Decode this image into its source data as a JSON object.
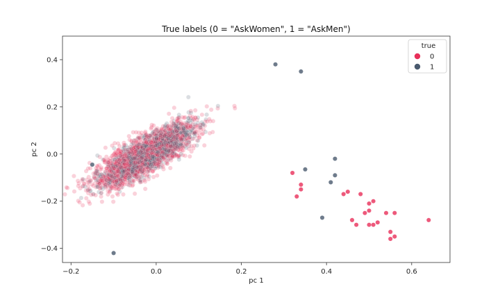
{
  "chart_data": {
    "type": "scatter",
    "title": "True labels (0 = \"AskWomen\", 1 = \"AskMen\")",
    "xlabel": "pc 1",
    "ylabel": "pc 2",
    "xlim": [
      -0.22,
      0.69
    ],
    "ylim": [
      -0.46,
      0.5
    ],
    "xticks": [
      -0.2,
      0.0,
      0.2,
      0.4,
      0.6
    ],
    "xtick_labels": [
      "−0.2",
      "0.0",
      "0.2",
      "0.4",
      "0.6"
    ],
    "yticks": [
      -0.4,
      -0.2,
      0.0,
      0.2,
      0.4
    ],
    "ytick_labels": [
      "−0.4",
      "−0.2",
      "0.0",
      "0.2",
      "0.4"
    ],
    "grid": false,
    "legend": {
      "title": "true",
      "placement": "top-right",
      "entries": [
        {
          "label": "0",
          "color": "#e8305a"
        },
        {
          "label": "1",
          "color": "#4a5a6e"
        }
      ]
    },
    "series": [
      {
        "label": "0",
        "color": "#e8305a",
        "cluster": {
          "center": [
            -0.03,
            -0.01
          ],
          "spread": [
            0.06,
            0.07
          ],
          "count": 1600,
          "corr": 0.8
        },
        "points": [
          [
            0.64,
            -0.28
          ],
          [
            0.56,
            -0.35
          ],
          [
            0.55,
            -0.36
          ],
          [
            0.56,
            -0.25
          ],
          [
            0.54,
            -0.25
          ],
          [
            0.52,
            -0.29
          ],
          [
            0.51,
            -0.3
          ],
          [
            0.5,
            -0.3
          ],
          [
            0.51,
            -0.2
          ],
          [
            0.5,
            -0.21
          ],
          [
            0.5,
            -0.24
          ],
          [
            0.49,
            -0.25
          ],
          [
            0.48,
            -0.17
          ],
          [
            0.44,
            -0.17
          ],
          [
            0.45,
            -0.16
          ],
          [
            0.34,
            -0.13
          ],
          [
            0.33,
            -0.18
          ],
          [
            0.34,
            -0.15
          ],
          [
            0.32,
            -0.08
          ],
          [
            0.55,
            -0.33
          ],
          [
            0.47,
            -0.3
          ],
          [
            0.46,
            -0.28
          ]
        ]
      },
      {
        "label": "1",
        "color": "#4a5a6e",
        "cluster": {
          "center": [
            -0.02,
            0.0
          ],
          "spread": [
            0.05,
            0.06
          ],
          "count": 1500,
          "corr": 0.82
        },
        "points": [
          [
            -0.15,
            -0.045
          ],
          [
            0.42,
            -0.02
          ],
          [
            0.35,
            -0.065
          ],
          [
            -0.1,
            -0.42
          ],
          [
            0.34,
            0.35
          ],
          [
            0.42,
            -0.09
          ],
          [
            0.41,
            -0.12
          ],
          [
            0.39,
            -0.27
          ],
          [
            0.28,
            0.38
          ]
        ]
      }
    ]
  }
}
